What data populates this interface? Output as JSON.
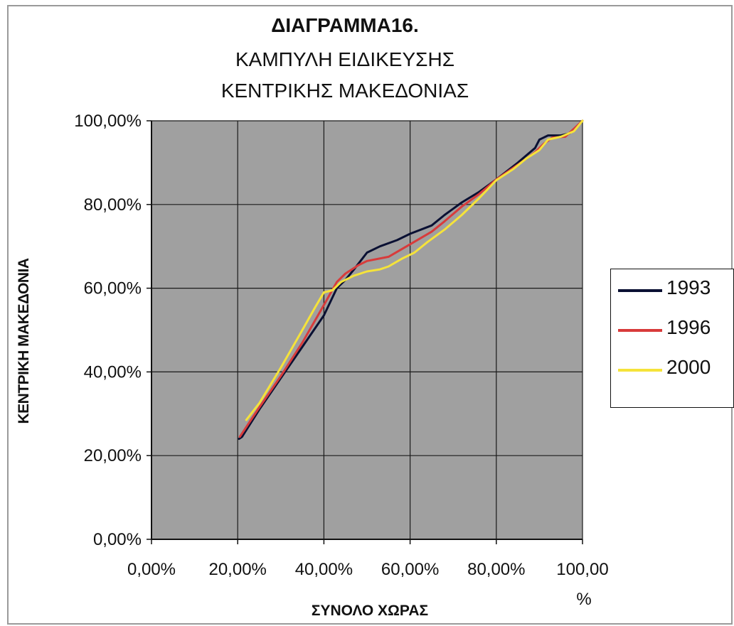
{
  "chart_data": {
    "type": "line",
    "title": "ΔΙΑΓΡΑΜΜΑ16.",
    "subtitle_line1": "ΚΑΜΠΥΛΗ ΕΙΔΙΚΕΥΣΗΣ",
    "subtitle_line2": "ΚΕΝΤΡΙΚΗΣ ΜΑΚΕΔΟΝΙΑΣ",
    "xlabel": "ΣΥΝΟΛΟ ΧΩΡΑΣ",
    "ylabel": "ΚΕΝΤΡΙΚΗ ΜΑΚΕΔΟΝΙΑ",
    "xlim": [
      0,
      1
    ],
    "ylim": [
      0,
      1
    ],
    "x_ticks": [
      "0,00%",
      "20,00%",
      "40,00%",
      "60,00%",
      "80,00%",
      "100,00",
      "%"
    ],
    "y_ticks": [
      "0,00%",
      "20,00%",
      "40,00%",
      "60,00%",
      "80,00%",
      "100,00%"
    ],
    "grid": true,
    "plot_background": "#a0a0a0",
    "legend_position": "right",
    "series": [
      {
        "name": "1993",
        "color": "#0a1033",
        "points": [
          [
            0.203,
            0.24
          ],
          [
            0.21,
            0.245
          ],
          [
            0.25,
            0.31
          ],
          [
            0.3,
            0.385
          ],
          [
            0.35,
            0.46
          ],
          [
            0.4,
            0.535
          ],
          [
            0.43,
            0.6
          ],
          [
            0.45,
            0.62
          ],
          [
            0.47,
            0.645
          ],
          [
            0.5,
            0.685
          ],
          [
            0.53,
            0.7
          ],
          [
            0.57,
            0.715
          ],
          [
            0.6,
            0.73
          ],
          [
            0.65,
            0.75
          ],
          [
            0.68,
            0.775
          ],
          [
            0.72,
            0.805
          ],
          [
            0.76,
            0.83
          ],
          [
            0.8,
            0.86
          ],
          [
            0.85,
            0.9
          ],
          [
            0.89,
            0.935
          ],
          [
            0.9,
            0.955
          ],
          [
            0.92,
            0.965
          ],
          [
            0.95,
            0.965
          ],
          [
            0.97,
            0.97
          ],
          [
            1.0,
            1.0
          ]
        ]
      },
      {
        "name": "1996",
        "color": "#d83b3b",
        "points": [
          [
            0.205,
            0.245
          ],
          [
            0.25,
            0.315
          ],
          [
            0.3,
            0.39
          ],
          [
            0.35,
            0.47
          ],
          [
            0.4,
            0.56
          ],
          [
            0.43,
            0.615
          ],
          [
            0.45,
            0.635
          ],
          [
            0.48,
            0.655
          ],
          [
            0.5,
            0.665
          ],
          [
            0.55,
            0.675
          ],
          [
            0.6,
            0.705
          ],
          [
            0.65,
            0.735
          ],
          [
            0.68,
            0.76
          ],
          [
            0.72,
            0.795
          ],
          [
            0.76,
            0.825
          ],
          [
            0.8,
            0.86
          ],
          [
            0.85,
            0.895
          ],
          [
            0.89,
            0.925
          ],
          [
            0.91,
            0.945
          ],
          [
            0.93,
            0.96
          ],
          [
            0.96,
            0.962
          ],
          [
            1.0,
            1.0
          ]
        ]
      },
      {
        "name": "2000",
        "color": "#f5e33a",
        "points": [
          [
            0.22,
            0.285
          ],
          [
            0.25,
            0.325
          ],
          [
            0.3,
            0.41
          ],
          [
            0.35,
            0.5
          ],
          [
            0.38,
            0.555
          ],
          [
            0.4,
            0.59
          ],
          [
            0.42,
            0.595
          ],
          [
            0.44,
            0.615
          ],
          [
            0.47,
            0.63
          ],
          [
            0.5,
            0.64
          ],
          [
            0.53,
            0.645
          ],
          [
            0.55,
            0.652
          ],
          [
            0.58,
            0.67
          ],
          [
            0.61,
            0.685
          ],
          [
            0.64,
            0.71
          ],
          [
            0.68,
            0.74
          ],
          [
            0.72,
            0.775
          ],
          [
            0.76,
            0.815
          ],
          [
            0.8,
            0.858
          ],
          [
            0.84,
            0.885
          ],
          [
            0.87,
            0.91
          ],
          [
            0.9,
            0.93
          ],
          [
            0.92,
            0.955
          ],
          [
            0.95,
            0.962
          ],
          [
            0.98,
            0.975
          ],
          [
            1.0,
            1.0
          ]
        ]
      }
    ]
  }
}
